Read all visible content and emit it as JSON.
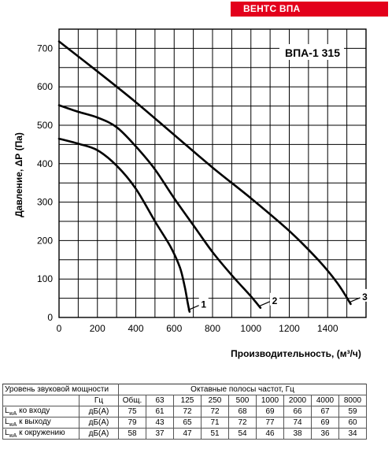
{
  "brand": "ВЕНТС ВПА",
  "chart_data": {
    "type": "line",
    "title": "ВПА-1 315",
    "xlabel": "Производительность, (м³/ч)",
    "ylabel": "Давление, ΔР (Па)",
    "xlim": [
      0,
      1600
    ],
    "ylim": [
      0,
      750
    ],
    "xticks": [
      0,
      200,
      400,
      600,
      800,
      1000,
      1200,
      1400
    ],
    "yticks": [
      0,
      100,
      200,
      300,
      400,
      500,
      600,
      700
    ],
    "grid": true,
    "series": [
      {
        "name": "1",
        "x": [
          0,
          100,
          200,
          300,
          400,
          500,
          580,
          630,
          655,
          670,
          680
        ],
        "y": [
          465,
          452,
          435,
          395,
          335,
          250,
          185,
          130,
          80,
          40,
          15
        ]
      },
      {
        "name": "2",
        "x": [
          0,
          100,
          200,
          300,
          400,
          500,
          600,
          700,
          800,
          900,
          1000,
          1050
        ],
        "y": [
          552,
          535,
          520,
          495,
          445,
          385,
          310,
          240,
          170,
          110,
          55,
          25
        ]
      },
      {
        "name": "3",
        "x": [
          0,
          200,
          400,
          600,
          800,
          1000,
          1200,
          1350,
          1450,
          1520
        ],
        "y": [
          718,
          640,
          560,
          475,
          390,
          310,
          225,
          150,
          90,
          35
        ]
      }
    ]
  },
  "sound_table": {
    "title": "Уровень звуковой мощности",
    "unit_header": "Гц",
    "band_header": "Октавные полосы частот, Гц",
    "columns": [
      "Общ.",
      "63",
      "125",
      "250",
      "500",
      "1000",
      "2000",
      "4000",
      "8000"
    ],
    "rows": [
      {
        "label_main": "L",
        "label_sub": "wA",
        "label_rest": " ко входу",
        "unit": "дБ(А)",
        "values": [
          "75",
          "61",
          "72",
          "72",
          "68",
          "69",
          "66",
          "67",
          "59"
        ]
      },
      {
        "label_main": "L",
        "label_sub": "wA",
        "label_rest": " к выходу",
        "unit": "дБ(А)",
        "values": [
          "79",
          "43",
          "65",
          "71",
          "72",
          "77",
          "74",
          "69",
          "60"
        ]
      },
      {
        "label_main": "L",
        "label_sub": "wA",
        "label_rest": " к окружению",
        "unit": "дБ(А)",
        "values": [
          "58",
          "37",
          "47",
          "51",
          "54",
          "46",
          "38",
          "36",
          "34"
        ]
      }
    ]
  }
}
